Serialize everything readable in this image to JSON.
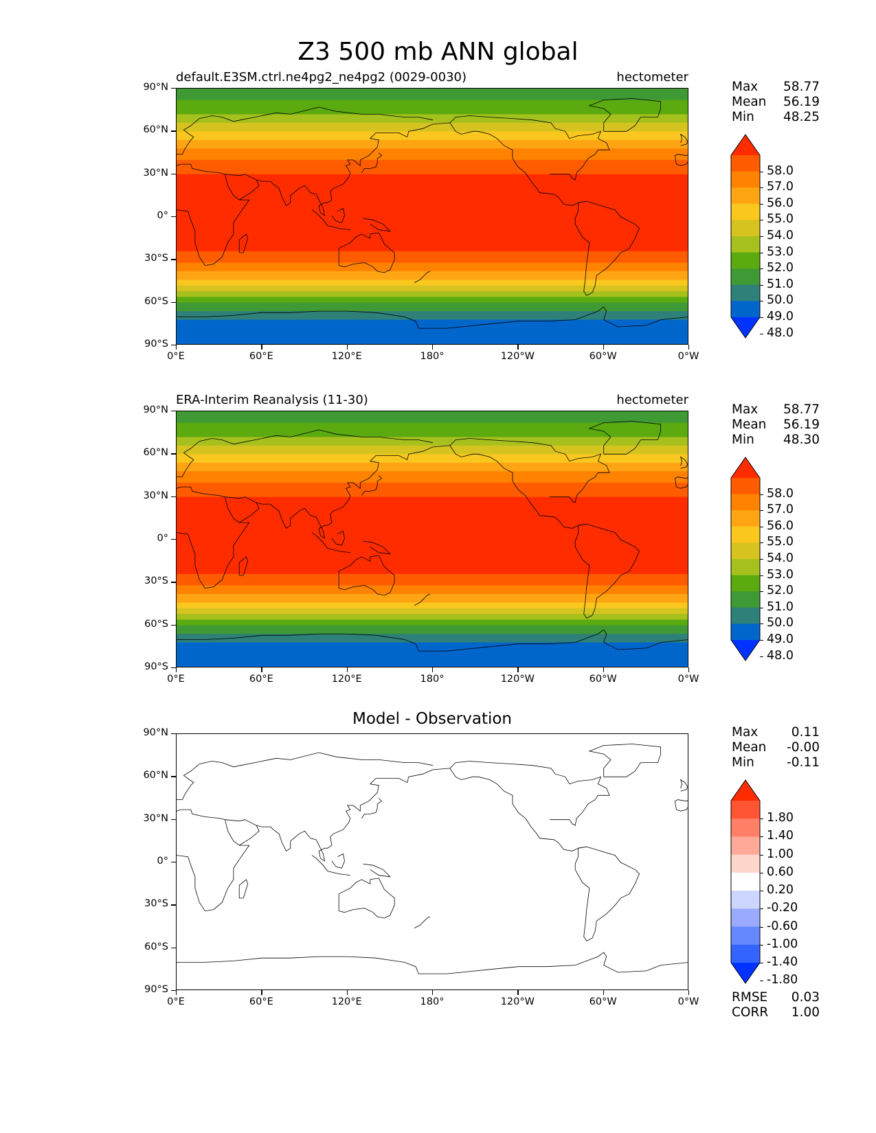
{
  "figure": {
    "title": "Z3 500 mb ANN global"
  },
  "axes": {
    "yticks": [
      "90°N",
      "60°N",
      "30°N",
      "0°",
      "30°S",
      "60°S",
      "90°S"
    ],
    "xticks": [
      "0°E",
      "60°E",
      "120°E",
      "180°",
      "120°W",
      "60°W",
      "0°W"
    ]
  },
  "panels": [
    {
      "title_left": "default.E3SM.ctrl.ne4pg2_ne4pg2 (0029-0030)",
      "title_right": "hectometer",
      "title_center": "",
      "stats": [
        {
          "label": "Max",
          "value": "58.77"
        },
        {
          "label": "Mean",
          "value": "56.19"
        },
        {
          "label": "Min",
          "value": "48.25"
        }
      ],
      "metrics": []
    },
    {
      "title_left": "ERA-Interim Reanalysis (11-30)",
      "title_right": "hectometer",
      "title_center": "",
      "stats": [
        {
          "label": "Max",
          "value": "58.77"
        },
        {
          "label": "Mean",
          "value": "56.19"
        },
        {
          "label": "Min",
          "value": "48.30"
        }
      ],
      "metrics": []
    },
    {
      "title_left": "",
      "title_right": "",
      "title_center": "Model - Observation",
      "stats": [
        {
          "label": "Max",
          "value": "0.11"
        },
        {
          "label": "Mean",
          "value": "-0.00"
        },
        {
          "label": "Min",
          "value": "-0.11"
        }
      ],
      "metrics": [
        {
          "label": "RMSE",
          "value": "0.03"
        },
        {
          "label": "CORR",
          "value": "1.00"
        }
      ]
    }
  ],
  "colorbars": {
    "field": {
      "labels": [
        "58.0",
        "57.0",
        "56.0",
        "55.0",
        "54.0",
        "53.0",
        "52.0",
        "51.0",
        "50.0",
        "49.0",
        "48.0"
      ],
      "colors": [
        "#0033ff",
        "#0066cc",
        "#2e8079",
        "#3f9a35",
        "#5aaa10",
        "#a6c11e",
        "#d6c320",
        "#f9c71e",
        "#ffa514",
        "#ff8200",
        "#ff5c00",
        "#ff2c00"
      ]
    },
    "diff": {
      "labels": [
        "1.80",
        "1.40",
        "1.00",
        "0.60",
        "0.20",
        "-0.20",
        "-0.60",
        "-1.00",
        "-1.40",
        "-1.80"
      ],
      "colors": [
        "#0033ff",
        "#3364ff",
        "#6688ff",
        "#99aaff",
        "#ccd6ff",
        "#ffffff",
        "#ffd6cc",
        "#ffaa99",
        "#ff8066",
        "#ff5533",
        "#ff2c00"
      ]
    }
  },
  "chart_data": [
    {
      "type": "heatmap",
      "title": "default.E3SM.ctrl.ne4pg2_ne4pg2 (0029-0030)",
      "units": "hectometer",
      "xlim": [
        0,
        360
      ],
      "ylim": [
        -90,
        90
      ],
      "lat": [
        90,
        80,
        70,
        60,
        50,
        40,
        30,
        20,
        10,
        0,
        -10,
        -20,
        -30,
        -40,
        -50,
        -60,
        -70,
        -80,
        -90
      ],
      "zonal_mean": [
        50.6,
        51.1,
        52.2,
        53.9,
        55.6,
        57.0,
        58.1,
        58.6,
        58.7,
        58.7,
        58.6,
        58.3,
        57.4,
        55.8,
        53.7,
        51.1,
        49.2,
        48.4,
        48.3
      ],
      "max": 58.77,
      "mean": 56.19,
      "min": 48.25,
      "levels": [
        48,
        49,
        50,
        51,
        52,
        53,
        54,
        55,
        56,
        57,
        58
      ]
    },
    {
      "type": "heatmap",
      "title": "ERA-Interim Reanalysis (11-30)",
      "units": "hectometer",
      "xlim": [
        0,
        360
      ],
      "ylim": [
        -90,
        90
      ],
      "lat": [
        90,
        80,
        70,
        60,
        50,
        40,
        30,
        20,
        10,
        0,
        -10,
        -20,
        -30,
        -40,
        -50,
        -60,
        -70,
        -80,
        -90
      ],
      "zonal_mean": [
        50.6,
        51.1,
        52.2,
        53.9,
        55.6,
        57.0,
        58.1,
        58.6,
        58.7,
        58.7,
        58.6,
        58.3,
        57.4,
        55.8,
        53.7,
        51.1,
        49.2,
        48.4,
        48.3
      ],
      "max": 58.77,
      "mean": 56.19,
      "min": 48.3,
      "levels": [
        48,
        49,
        50,
        51,
        52,
        53,
        54,
        55,
        56,
        57,
        58
      ]
    },
    {
      "type": "heatmap",
      "title": "Model - Observation",
      "xlim": [
        0,
        360
      ],
      "ylim": [
        -90,
        90
      ],
      "lat": [
        90,
        60,
        30,
        0,
        -30,
        -60,
        -90
      ],
      "zonal_mean": [
        0,
        0,
        0,
        0,
        0,
        0,
        0
      ],
      "max": 0.11,
      "mean": -0.0,
      "min": -0.11,
      "rmse": 0.03,
      "corr": 1.0,
      "levels": [
        -1.8,
        -1.4,
        -1.0,
        -0.6,
        -0.2,
        0.2,
        0.6,
        1.0,
        1.4,
        1.8
      ]
    }
  ]
}
